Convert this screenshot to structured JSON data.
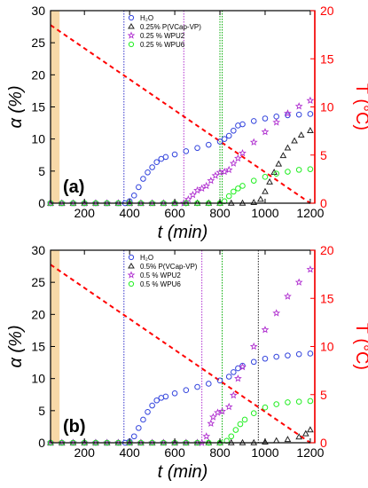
{
  "chart_data": [
    {
      "type": "scatter",
      "panel_label": "(a)",
      "xlabel": "t (min)",
      "ylabel": "α (%)",
      "y2label": "T (°C)",
      "xlim": [
        50,
        1220
      ],
      "ylim": [
        0,
        30
      ],
      "y2lim": [
        0,
        20
      ],
      "xticks": [
        200,
        400,
        600,
        800,
        1000,
        1200
      ],
      "yticks": [
        0,
        5,
        10,
        15,
        20,
        25,
        30
      ],
      "y2ticks": [
        0,
        5,
        10,
        15,
        20
      ],
      "shaded_x": [
        50,
        90
      ],
      "temperature_line": {
        "x": [
          50,
          1200
        ],
        "y": [
          18.5,
          0
        ],
        "color": "#ff0000"
      },
      "vlines": [
        {
          "x": 375,
          "color": "#3333cc"
        },
        {
          "x": 640,
          "color": "#b030d0"
        },
        {
          "x": 800,
          "color": "#00aa00"
        },
        {
          "x": 810,
          "color": "#00aa00"
        }
      ],
      "legend": "top-center",
      "series": [
        {
          "name": "H₂O",
          "color": "#3344dd",
          "marker": "circle",
          "points": [
            [
              50,
              0
            ],
            [
              100,
              0
            ],
            [
              150,
              0
            ],
            [
              200,
              0
            ],
            [
              250,
              0
            ],
            [
              300,
              0
            ],
            [
              350,
              0
            ],
            [
              380,
              0
            ],
            [
              400,
              0.3
            ],
            [
              420,
              1.2
            ],
            [
              440,
              2.5
            ],
            [
              460,
              3.8
            ],
            [
              480,
              4.8
            ],
            [
              500,
              5.6
            ],
            [
              520,
              6.4
            ],
            [
              540,
              6.9
            ],
            [
              560,
              7.2
            ],
            [
              600,
              7.6
            ],
            [
              650,
              8.1
            ],
            [
              700,
              8.6
            ],
            [
              750,
              9.1
            ],
            [
              800,
              9.6
            ],
            [
              820,
              10
            ],
            [
              840,
              10.5
            ],
            [
              860,
              11.3
            ],
            [
              880,
              12.1
            ],
            [
              900,
              12.3
            ],
            [
              950,
              12.8
            ],
            [
              1000,
              13.2
            ],
            [
              1050,
              13.5
            ],
            [
              1100,
              13.7
            ],
            [
              1150,
              13.8
            ],
            [
              1200,
              13.9
            ]
          ]
        },
        {
          "name": "0.25% P(VCap-VP)",
          "color": "#222222",
          "marker": "triangle",
          "points": [
            [
              50,
              0
            ],
            [
              100,
              0
            ],
            [
              150,
              0
            ],
            [
              200,
              0
            ],
            [
              250,
              0
            ],
            [
              300,
              0
            ],
            [
              350,
              0
            ],
            [
              400,
              0
            ],
            [
              450,
              0
            ],
            [
              500,
              0
            ],
            [
              550,
              0
            ],
            [
              600,
              0
            ],
            [
              650,
              0
            ],
            [
              700,
              0
            ],
            [
              750,
              0
            ],
            [
              800,
              0
            ],
            [
              850,
              0
            ],
            [
              900,
              0
            ],
            [
              950,
              0.1
            ],
            [
              980,
              0.6
            ],
            [
              1000,
              1.8
            ],
            [
              1020,
              3.3
            ],
            [
              1040,
              4.8
            ],
            [
              1060,
              6.1
            ],
            [
              1080,
              7.4
            ],
            [
              1100,
              8.6
            ],
            [
              1130,
              9.7
            ],
            [
              1160,
              10.6
            ],
            [
              1200,
              11.3
            ]
          ]
        },
        {
          "name": "0.25 % WPU2",
          "color": "#b030d0",
          "marker": "star",
          "points": [
            [
              50,
              0
            ],
            [
              100,
              0
            ],
            [
              150,
              0
            ],
            [
              200,
              0
            ],
            [
              250,
              0
            ],
            [
              300,
              0
            ],
            [
              350,
              0
            ],
            [
              400,
              0
            ],
            [
              450,
              0
            ],
            [
              500,
              0
            ],
            [
              550,
              0
            ],
            [
              600,
              0
            ],
            [
              640,
              0
            ],
            [
              660,
              0.6
            ],
            [
              680,
              1.3
            ],
            [
              700,
              2
            ],
            [
              720,
              2.3
            ],
            [
              740,
              2.7
            ],
            [
              760,
              3.5
            ],
            [
              780,
              4.3
            ],
            [
              800,
              4.8
            ],
            [
              820,
              4.9
            ],
            [
              840,
              5.2
            ],
            [
              860,
              6.2
            ],
            [
              880,
              7
            ],
            [
              900,
              7.8
            ],
            [
              950,
              9.5
            ],
            [
              1000,
              11.1
            ],
            [
              1050,
              12.6
            ],
            [
              1100,
              14
            ],
            [
              1150,
              15.1
            ],
            [
              1200,
              16
            ]
          ]
        },
        {
          "name": "0.25 % WPU6",
          "color": "#22ee22",
          "marker": "circle",
          "points": [
            [
              50,
              0
            ],
            [
              100,
              0
            ],
            [
              150,
              0
            ],
            [
              200,
              0
            ],
            [
              250,
              0
            ],
            [
              300,
              0
            ],
            [
              350,
              0
            ],
            [
              400,
              0
            ],
            [
              450,
              0
            ],
            [
              500,
              0
            ],
            [
              550,
              0
            ],
            [
              600,
              0
            ],
            [
              650,
              0
            ],
            [
              700,
              0
            ],
            [
              750,
              0
            ],
            [
              800,
              0
            ],
            [
              820,
              0.3
            ],
            [
              840,
              1.1
            ],
            [
              860,
              1.8
            ],
            [
              880,
              2.3
            ],
            [
              900,
              2.7
            ],
            [
              950,
              3.5
            ],
            [
              1000,
              4.1
            ],
            [
              1050,
              4.6
            ],
            [
              1100,
              4.9
            ],
            [
              1150,
              5.2
            ],
            [
              1200,
              5.3
            ]
          ]
        }
      ]
    },
    {
      "type": "scatter",
      "panel_label": "(b)",
      "xlabel": "t (min)",
      "ylabel": "α (%)",
      "y2label": "T (°C)",
      "xlim": [
        50,
        1220
      ],
      "ylim": [
        0,
        30
      ],
      "y2lim": [
        0,
        20
      ],
      "xticks": [
        200,
        400,
        600,
        800,
        1000,
        1200
      ],
      "yticks": [
        0,
        5,
        10,
        15,
        20,
        25,
        30
      ],
      "y2ticks": [
        0,
        5,
        10,
        15,
        20
      ],
      "shaded_x": [
        50,
        90
      ],
      "temperature_line": {
        "x": [
          50,
          1200
        ],
        "y": [
          18.5,
          0
        ],
        "color": "#ff0000"
      },
      "vlines": [
        {
          "x": 375,
          "color": "#3333cc"
        },
        {
          "x": 720,
          "color": "#b030d0"
        },
        {
          "x": 810,
          "color": "#00aa00"
        },
        {
          "x": 970,
          "color": "#222222"
        }
      ],
      "legend": "top-center",
      "series": [
        {
          "name": "H₂O",
          "color": "#3344dd",
          "marker": "circle",
          "points": [
            [
              50,
              0
            ],
            [
              100,
              0
            ],
            [
              150,
              0
            ],
            [
              200,
              0
            ],
            [
              250,
              0
            ],
            [
              300,
              0
            ],
            [
              350,
              0
            ],
            [
              380,
              0
            ],
            [
              400,
              0.2
            ],
            [
              420,
              1
            ],
            [
              440,
              2.3
            ],
            [
              460,
              3.6
            ],
            [
              480,
              4.8
            ],
            [
              500,
              5.8
            ],
            [
              520,
              6.6
            ],
            [
              540,
              7
            ],
            [
              560,
              7.2
            ],
            [
              600,
              7.7
            ],
            [
              650,
              8.2
            ],
            [
              700,
              8.7
            ],
            [
              750,
              9.2
            ],
            [
              800,
              9.7
            ],
            [
              840,
              10.3
            ],
            [
              860,
              11
            ],
            [
              880,
              11.6
            ],
            [
              900,
              12
            ],
            [
              950,
              12.6
            ],
            [
              1000,
              13.1
            ],
            [
              1050,
              13.4
            ],
            [
              1100,
              13.6
            ],
            [
              1150,
              13.8
            ],
            [
              1200,
              13.9
            ]
          ]
        },
        {
          "name": "0.5% P(VCap-VP)",
          "color": "#222222",
          "marker": "triangle",
          "points": [
            [
              50,
              0
            ],
            [
              100,
              0
            ],
            [
              150,
              0
            ],
            [
              200,
              0
            ],
            [
              250,
              0
            ],
            [
              300,
              0
            ],
            [
              350,
              0
            ],
            [
              400,
              0
            ],
            [
              450,
              0
            ],
            [
              500,
              0
            ],
            [
              550,
              0
            ],
            [
              600,
              0
            ],
            [
              650,
              0
            ],
            [
              700,
              0
            ],
            [
              750,
              0
            ],
            [
              800,
              0
            ],
            [
              850,
              0
            ],
            [
              900,
              0
            ],
            [
              950,
              0
            ],
            [
              1000,
              0.1
            ],
            [
              1050,
              0.3
            ],
            [
              1100,
              0.5
            ],
            [
              1150,
              0.9
            ],
            [
              1180,
              1.4
            ],
            [
              1200,
              2
            ]
          ]
        },
        {
          "name": "0.5 % WPU2",
          "color": "#b030d0",
          "marker": "star",
          "points": [
            [
              50,
              0
            ],
            [
              100,
              0
            ],
            [
              150,
              0
            ],
            [
              200,
              0
            ],
            [
              250,
              0
            ],
            [
              300,
              0
            ],
            [
              350,
              0
            ],
            [
              400,
              0
            ],
            [
              450,
              0
            ],
            [
              500,
              0
            ],
            [
              550,
              0
            ],
            [
              600,
              0
            ],
            [
              650,
              0
            ],
            [
              700,
              0
            ],
            [
              720,
              0
            ],
            [
              740,
              1
            ],
            [
              760,
              3
            ],
            [
              770,
              4
            ],
            [
              790,
              4.7
            ],
            [
              810,
              4.9
            ],
            [
              840,
              5.6
            ],
            [
              860,
              7.4
            ],
            [
              880,
              10
            ],
            [
              900,
              11.8
            ],
            [
              950,
              15
            ],
            [
              1000,
              17.6
            ],
            [
              1050,
              20.2
            ],
            [
              1100,
              22.8
            ],
            [
              1150,
              25
            ],
            [
              1200,
              27
            ]
          ]
        },
        {
          "name": "0.5 % WPU6",
          "color": "#22ee22",
          "marker": "circle",
          "points": [
            [
              50,
              0
            ],
            [
              100,
              0
            ],
            [
              150,
              0
            ],
            [
              200,
              0
            ],
            [
              250,
              0
            ],
            [
              300,
              0
            ],
            [
              350,
              0
            ],
            [
              400,
              0
            ],
            [
              450,
              0
            ],
            [
              500,
              0
            ],
            [
              550,
              0
            ],
            [
              600,
              0
            ],
            [
              650,
              0
            ],
            [
              700,
              0
            ],
            [
              750,
              0
            ],
            [
              800,
              0
            ],
            [
              830,
              0.3
            ],
            [
              850,
              1
            ],
            [
              870,
              2
            ],
            [
              890,
              2.9
            ],
            [
              910,
              3.6
            ],
            [
              950,
              4.6
            ],
            [
              1000,
              5.5
            ],
            [
              1050,
              6
            ],
            [
              1100,
              6.3
            ],
            [
              1150,
              6.4
            ],
            [
              1200,
              6.5
            ]
          ]
        }
      ]
    }
  ]
}
